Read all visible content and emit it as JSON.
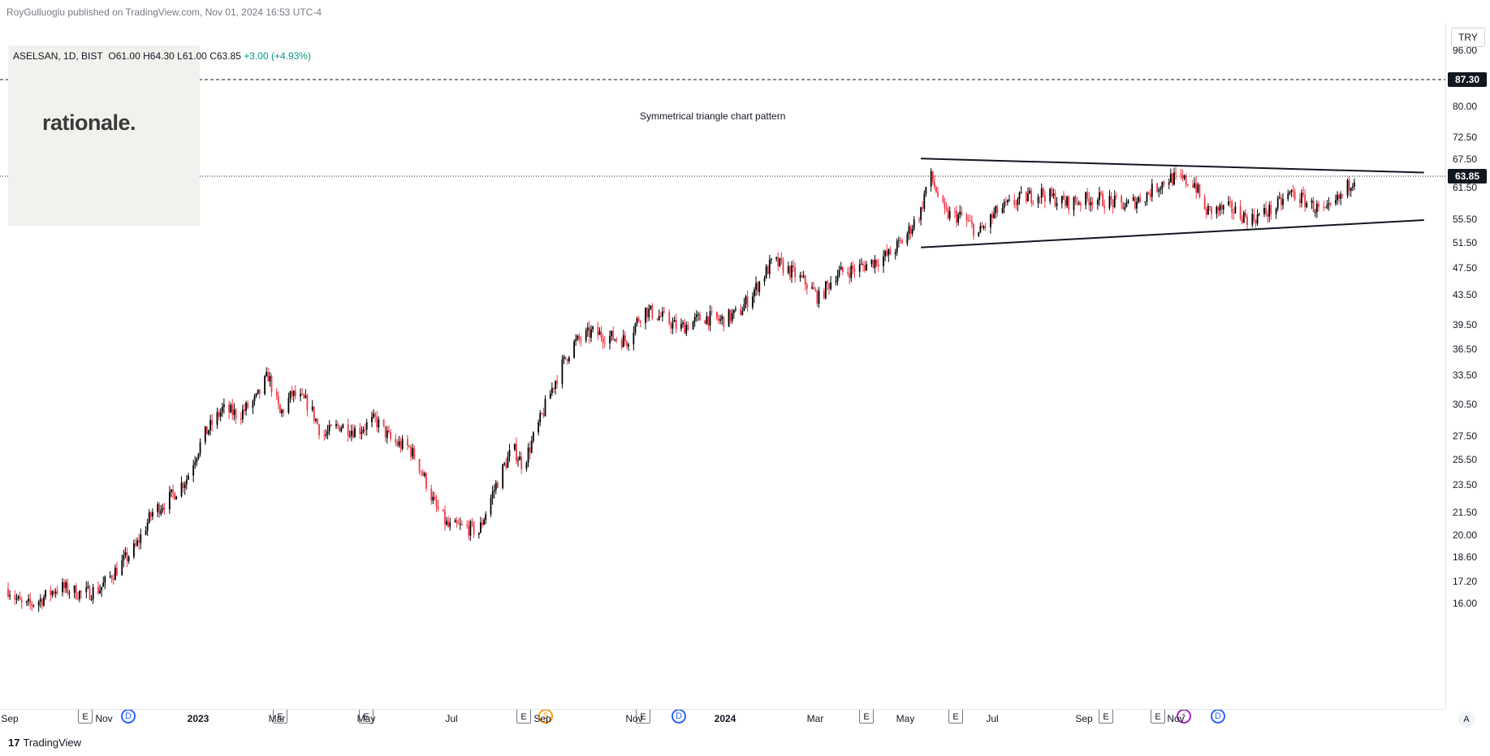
{
  "header": {
    "published_text": "RoyGulluoglu published on TradingView.com, Nov 01, 2024 16:53 UTC-4"
  },
  "legend": {
    "symbol": "ASELSAN, 1D, BIST",
    "open": "O61.00",
    "high": "H64.30",
    "low": "L61.00",
    "close": "C63.85",
    "change": "+3.00 (+4.93%)"
  },
  "watermark": {
    "text": "rationale."
  },
  "currency": "TRY",
  "annotation": {
    "text": "Symmetrical triangle chart pattern"
  },
  "price_scale": {
    "labels": [
      "96.00",
      "80.00",
      "72.50",
      "67.50",
      "61.50",
      "55.50",
      "51.50",
      "47.50",
      "43.50",
      "39.50",
      "36.50",
      "33.50",
      "30.50",
      "27.50",
      "25.50",
      "23.50",
      "21.50",
      "20.00",
      "18.60",
      "17.20",
      "16.00"
    ],
    "horizontal_line_tag": "87.30",
    "last_price_tag": "63.85"
  },
  "time_axis": {
    "labels": [
      "Sep",
      "Nov",
      "2023",
      "Mar",
      "May",
      "Jul",
      "Sep",
      "Nov",
      "2024",
      "Mar",
      "May",
      "Jul",
      "Sep",
      "Nov"
    ],
    "auto_label": "A"
  },
  "events": [
    "E",
    "D",
    "E",
    "E",
    "E",
    "S",
    "E",
    "D",
    "E",
    "E",
    "E",
    "E",
    "bolt",
    "D"
  ],
  "footer": {
    "logo_mark": "17",
    "logo_text": "TradingView"
  },
  "colors": {
    "up": "#000000",
    "down": "#f23645",
    "accent": "#2962ff",
    "change_positive": "#089981"
  },
  "chart_data": {
    "type": "candlestick",
    "symbol": "ASELSAN",
    "interval": "1D",
    "exchange": "BIST",
    "currency": "TRY",
    "y_scale": "log",
    "ylim": [
      15.0,
      98.0
    ],
    "x_range": [
      "2022-09-01",
      "2024-12-15"
    ],
    "last_close": 63.85,
    "horizontal_line": 87.3,
    "trendlines": [
      {
        "name": "upper",
        "start": [
          "2024-02-20",
          67.6
        ],
        "end": [
          "2024-12-12",
          64.6
        ]
      },
      {
        "name": "lower",
        "start": [
          "2024-02-20",
          50.7
        ],
        "end": [
          "2024-12-12",
          55.4
        ]
      }
    ],
    "price_path": [
      [
        "2022-09-01",
        16.8
      ],
      [
        "2022-09-10",
        15.8
      ],
      [
        "2022-09-20",
        16.2
      ],
      [
        "2022-10-01",
        16.9
      ],
      [
        "2022-10-15",
        16.5
      ],
      [
        "2022-10-25",
        16.8
      ],
      [
        "2022-11-05",
        18.0
      ],
      [
        "2022-11-15",
        19.2
      ],
      [
        "2022-11-25",
        21.5
      ],
      [
        "2022-12-05",
        22.5
      ],
      [
        "2022-12-15",
        24.0
      ],
      [
        "2022-12-25",
        27.5
      ],
      [
        "2023-01-05",
        30.0
      ],
      [
        "2023-01-15",
        29.5
      ],
      [
        "2023-01-25",
        31.0
      ],
      [
        "2023-02-01",
        33.5
      ],
      [
        "2023-02-08",
        29.5
      ],
      [
        "2023-02-15",
        31.5
      ],
      [
        "2023-02-25",
        30.5
      ],
      [
        "2023-03-05",
        27.5
      ],
      [
        "2023-03-15",
        28.5
      ],
      [
        "2023-03-25",
        28.0
      ],
      [
        "2023-04-05",
        29.0
      ],
      [
        "2023-04-15",
        27.0
      ],
      [
        "2023-04-25",
        26.5
      ],
      [
        "2023-05-01",
        25.0
      ],
      [
        "2023-05-10",
        22.0
      ],
      [
        "2023-05-18",
        20.5
      ],
      [
        "2023-05-28",
        20.5
      ],
      [
        "2023-06-05",
        20.2
      ],
      [
        "2023-06-15",
        23.5
      ],
      [
        "2023-06-25",
        26.5
      ],
      [
        "2023-07-01",
        25.0
      ],
      [
        "2023-07-10",
        28.5
      ],
      [
        "2023-07-20",
        33.0
      ],
      [
        "2023-07-30",
        37.0
      ],
      [
        "2023-08-10",
        38.5
      ],
      [
        "2023-08-20",
        38.0
      ],
      [
        "2023-08-31",
        37.5
      ],
      [
        "2023-09-10",
        41.5
      ],
      [
        "2023-09-20",
        40.5
      ],
      [
        "2023-10-01",
        39.0
      ],
      [
        "2023-10-15",
        40.5
      ],
      [
        "2023-10-25",
        40.0
      ],
      [
        "2023-11-05",
        41.0
      ],
      [
        "2023-11-15",
        44.5
      ],
      [
        "2023-11-25",
        48.5
      ],
      [
        "2023-12-05",
        47.0
      ],
      [
        "2023-12-15",
        45.0
      ],
      [
        "2023-12-22",
        43.0
      ],
      [
        "2024-01-01",
        46.5
      ],
      [
        "2024-01-15",
        47.5
      ],
      [
        "2024-02-01",
        49.5
      ],
      [
        "2024-02-10",
        52.0
      ],
      [
        "2024-02-20",
        57.0
      ],
      [
        "2024-02-25",
        64.5
      ],
      [
        "2024-03-05",
        56.5
      ],
      [
        "2024-03-15",
        56.0
      ],
      [
        "2024-03-25",
        53.0
      ],
      [
        "2024-04-05",
        57.0
      ],
      [
        "2024-04-20",
        59.5
      ],
      [
        "2024-05-01",
        60.5
      ],
      [
        "2024-05-15",
        58.5
      ],
      [
        "2024-06-01",
        59.5
      ],
      [
        "2024-06-20",
        58.0
      ],
      [
        "2024-07-01",
        60.0
      ],
      [
        "2024-07-15",
        63.5
      ],
      [
        "2024-07-30",
        62.5
      ],
      [
        "2024-08-05",
        57.0
      ],
      [
        "2024-08-20",
        57.5
      ],
      [
        "2024-09-01",
        55.5
      ],
      [
        "2024-09-15",
        57.5
      ],
      [
        "2024-09-25",
        60.5
      ],
      [
        "2024-10-05",
        58.5
      ],
      [
        "2024-10-15",
        56.5
      ],
      [
        "2024-10-25",
        60.0
      ],
      [
        "2024-11-01",
        63.85
      ]
    ]
  }
}
